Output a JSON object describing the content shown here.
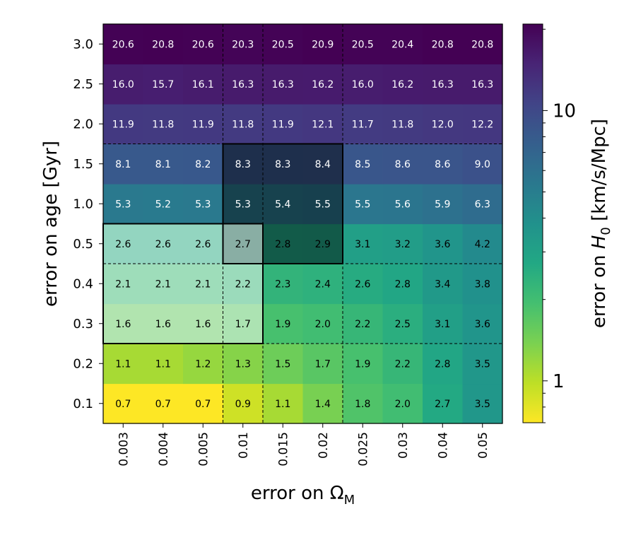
{
  "chart_data": {
    "type": "heatmap",
    "x_categories": [
      "0.003",
      "0.004",
      "0.005",
      "0.01",
      "0.015",
      "0.02",
      "0.025",
      "0.03",
      "0.04",
      "0.05"
    ],
    "y_categories": [
      "0.1",
      "0.2",
      "0.3",
      "0.4",
      "0.5",
      "1.0",
      "1.5",
      "2.0",
      "2.5",
      "3.0"
    ],
    "values": [
      [
        0.7,
        0.7,
        0.7,
        0.9,
        1.1,
        1.4,
        1.8,
        2.0,
        2.7,
        3.5
      ],
      [
        1.1,
        1.1,
        1.2,
        1.3,
        1.5,
        1.7,
        1.9,
        2.2,
        2.8,
        3.5
      ],
      [
        1.6,
        1.6,
        1.6,
        1.7,
        1.9,
        2.0,
        2.2,
        2.5,
        3.1,
        3.6
      ],
      [
        2.1,
        2.1,
        2.1,
        2.2,
        2.3,
        2.4,
        2.6,
        2.8,
        3.4,
        3.8
      ],
      [
        2.6,
        2.6,
        2.6,
        2.7,
        2.8,
        2.9,
        3.1,
        3.2,
        3.6,
        4.2
      ],
      [
        5.3,
        5.2,
        5.3,
        5.3,
        5.4,
        5.5,
        5.5,
        5.6,
        5.9,
        6.3
      ],
      [
        8.1,
        8.1,
        8.2,
        8.3,
        8.3,
        8.4,
        8.5,
        8.6,
        8.6,
        9.0
      ],
      [
        11.9,
        11.8,
        11.9,
        11.8,
        11.9,
        12.1,
        11.7,
        11.8,
        12.0,
        12.2
      ],
      [
        16.0,
        15.7,
        16.1,
        16.3,
        16.3,
        16.2,
        16.0,
        16.2,
        16.3,
        16.3
      ],
      [
        20.6,
        20.8,
        20.6,
        20.3,
        20.5,
        20.9,
        20.5,
        20.4,
        20.8,
        20.8
      ]
    ],
    "xlabel": "error on Ω",
    "xlabel_sub": "M",
    "ylabel": "error on age [Gyr]",
    "colorbar": {
      "label_prefix": "error on ",
      "label_var": "H",
      "label_sub": "0",
      "label_suffix": " [km/s/Mpc]",
      "scale": "log",
      "range": [
        0.7,
        20.9
      ],
      "tick_labels": [
        "1",
        "10"
      ],
      "tick_values": [
        1,
        10
      ],
      "colormap": "viridis_r"
    },
    "dashed_col_boundaries_after": [
      "0.005",
      "0.01",
      "0.02"
    ],
    "dashed_row_boundaries_after": [
      "0.2",
      "0.4",
      "1.5"
    ],
    "highlight_regions": [
      {
        "x_from": "0.01",
        "x_to": "0.02",
        "y_from": "0.5",
        "y_to": "1.5",
        "fill": "#000000",
        "opacity": 0.45
      },
      {
        "x_from": "0.003",
        "x_to": "0.01",
        "y_from": "0.3",
        "y_to": "0.5",
        "fill": "#ffffff",
        "opacity": 0.5
      }
    ],
    "grid": false,
    "legend": "colorbar-right"
  }
}
